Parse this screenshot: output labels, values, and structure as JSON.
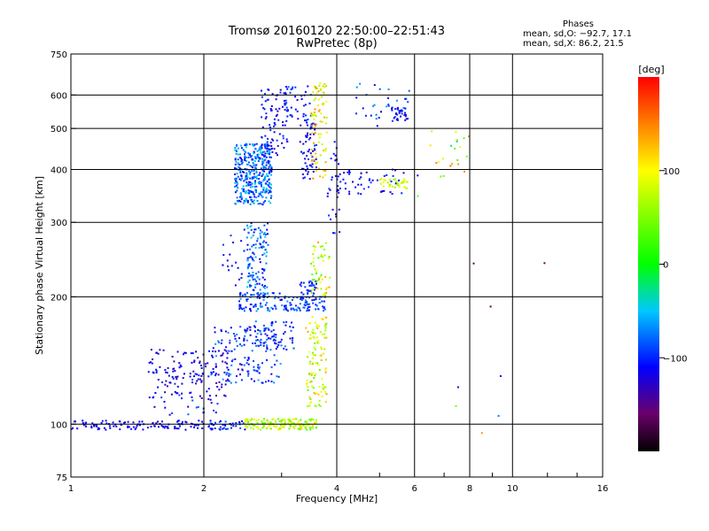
{
  "window": {
    "title_line1": "Tromsø 20160120 22:50:00–22:51:43",
    "title_line2": "RwPretec (8p)"
  },
  "phase_info": {
    "heading": "Phases",
    "line_o": "mean, sd,O: −92.7, 17.1",
    "line_x": "mean, sd,X: 86.2, 21.5"
  },
  "colorbar": {
    "label": "[deg]",
    "range": [
      -200,
      200
    ],
    "ticks": [
      {
        "value": 100,
        "label": "100"
      },
      {
        "value": 0,
        "label": "0"
      },
      {
        "value": -100,
        "label": "−100"
      }
    ],
    "stops": [
      {
        "value": -200,
        "color": "#000000"
      },
      {
        "value": -160,
        "color": "#6a006a"
      },
      {
        "value": -110,
        "color": "#0000ff"
      },
      {
        "value": -50,
        "color": "#00c8ff"
      },
      {
        "value": 0,
        "color": "#00ff00"
      },
      {
        "value": 100,
        "color": "#ffff00"
      },
      {
        "value": 150,
        "color": "#ff8000"
      },
      {
        "value": 200,
        "color": "#ff0000"
      }
    ]
  },
  "chart_data": {
    "type": "scatter",
    "title": "Tromsø 20160120 22:50:00–22:51:43",
    "subtitle": "RwPretec (8p)",
    "xlabel": "Frequency [MHz]",
    "ylabel": "Stationary phase Virtual Height [km]",
    "x_scale": "log",
    "y_scale": "log",
    "xlim": [
      1,
      16
    ],
    "ylim": [
      75,
      750
    ],
    "x_ticks": [
      {
        "value": 1,
        "label": "1"
      },
      {
        "value": 2,
        "label": "2"
      },
      {
        "value": 4,
        "label": "4"
      },
      {
        "value": 6,
        "label": "6"
      },
      {
        "value": 8,
        "label": "8"
      },
      {
        "value": 10,
        "label": "10"
      },
      {
        "value": 16,
        "label": "16"
      }
    ],
    "y_ticks": [
      {
        "value": 75,
        "label": "75"
      },
      {
        "value": 100,
        "label": "100"
      },
      {
        "value": 200,
        "label": "200"
      },
      {
        "value": 300,
        "label": "300"
      },
      {
        "value": 400,
        "label": "400"
      },
      {
        "value": 500,
        "label": "500"
      },
      {
        "value": 600,
        "label": "600"
      },
      {
        "value": 750,
        "label": "750"
      }
    ],
    "grid": true,
    "clusters": [
      {
        "f": [
          1.0,
          2.0
        ],
        "h": [
          97,
          102
        ],
        "phase": [
          -130,
          -100
        ],
        "n": 110
      },
      {
        "f": [
          2.05,
          2.5
        ],
        "h": [
          97,
          102
        ],
        "phase": [
          -120,
          -80
        ],
        "n": 40
      },
      {
        "f": [
          2.45,
          3.6
        ],
        "h": [
          97,
          103
        ],
        "phase": [
          20,
          120
        ],
        "n": 160
      },
      {
        "f": [
          1.5,
          2.2
        ],
        "h": [
          105,
          135
        ],
        "phase": [
          -130,
          -80
        ],
        "n": 35
      },
      {
        "f": [
          1.5,
          2.3
        ],
        "h": [
          115,
          150
        ],
        "phase": [
          -140,
          -100
        ],
        "n": 130
      },
      {
        "f": [
          2.1,
          3.0
        ],
        "h": [
          125,
          170
        ],
        "phase": [
          -130,
          -60
        ],
        "n": 140
      },
      {
        "f": [
          2.6,
          3.2
        ],
        "h": [
          150,
          175
        ],
        "phase": [
          -120,
          -70
        ],
        "n": 60
      },
      {
        "f": [
          3.4,
          3.8
        ],
        "h": [
          110,
          180
        ],
        "phase": [
          30,
          140
        ],
        "n": 110
      },
      {
        "f": [
          2.4,
          3.1
        ],
        "h": [
          185,
          205
        ],
        "phase": [
          -120,
          -60
        ],
        "n": 90
      },
      {
        "f": [
          3.1,
          3.8
        ],
        "h": [
          185,
          200
        ],
        "phase": [
          -110,
          -70
        ],
        "n": 70
      },
      {
        "f": [
          3.3,
          3.6
        ],
        "h": [
          200,
          220
        ],
        "phase": [
          -120,
          -80
        ],
        "n": 30
      },
      {
        "f": [
          3.5,
          3.9
        ],
        "h": [
          200,
          270
        ],
        "phase": [
          20,
          140
        ],
        "n": 50
      },
      {
        "f": [
          2.5,
          2.8
        ],
        "h": [
          200,
          300
        ],
        "phase": [
          -120,
          -40
        ],
        "n": 130
      },
      {
        "f": [
          2.2,
          2.5
        ],
        "h": [
          200,
          290
        ],
        "phase": [
          -120,
          -90
        ],
        "n": 20
      },
      {
        "f": [
          2.35,
          2.85
        ],
        "h": [
          330,
          460
        ],
        "phase": [
          -120,
          -40
        ],
        "n": 380
      },
      {
        "f": [
          2.7,
          3.1
        ],
        "h": [
          430,
          620
        ],
        "phase": [
          -130,
          -90
        ],
        "n": 90
      },
      {
        "f": [
          3.05,
          3.5
        ],
        "h": [
          520,
          640
        ],
        "phase": [
          -120,
          -80
        ],
        "n": 40
      },
      {
        "f": [
          3.3,
          3.6
        ],
        "h": [
          380,
          520
        ],
        "phase": [
          -130,
          -90
        ],
        "n": 60
      },
      {
        "f": [
          3.5,
          3.8
        ],
        "h": [
          380,
          640
        ],
        "phase": [
          60,
          150
        ],
        "n": 80
      },
      {
        "f": [
          3.8,
          4.1
        ],
        "h": [
          280,
          470
        ],
        "phase": [
          -130,
          -90
        ],
        "n": 30
      },
      {
        "f": [
          4.0,
          5.7
        ],
        "h": [
          350,
          400
        ],
        "phase": [
          -130,
          -90
        ],
        "n": 50
      },
      {
        "f": [
          5.0,
          5.8
        ],
        "h": [
          360,
          380
        ],
        "phase": [
          50,
          120
        ],
        "n": 35
      },
      {
        "f": [
          5.3,
          5.8
        ],
        "h": [
          520,
          560
        ],
        "phase": [
          -130,
          -90
        ],
        "n": 30
      },
      {
        "f": [
          4.4,
          5.9
        ],
        "h": [
          500,
          640
        ],
        "phase": [
          -120,
          -60
        ],
        "n": 30
      },
      {
        "f": [
          6.5,
          8.0
        ],
        "h": [
          380,
          500
        ],
        "phase": [
          20,
          160
        ],
        "n": 20
      },
      {
        "f": [
          6.0,
          12.0
        ],
        "h": [
          85,
          500
        ],
        "phase": [
          -200,
          200
        ],
        "n": 12
      }
    ]
  }
}
